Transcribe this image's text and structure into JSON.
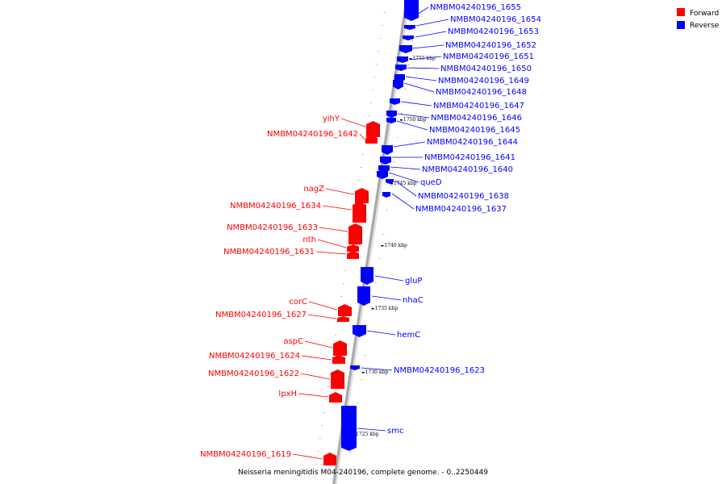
{
  "caption": "Neisseria meningitidis M04-240196, complete genome. - 0..2250449",
  "legend": {
    "forward": {
      "label": "Forward",
      "color": "#ff0000"
    },
    "reverse": {
      "label": "Reverse",
      "color": "#0000ff"
    }
  },
  "colors": {
    "forward": "#ff0000",
    "reverse": "#0000ff",
    "backbone": "#a8a8a8"
  },
  "ticks": [
    "1755 kbp",
    "1750 kbp",
    "1745 kbp",
    "1740 kbp",
    "1735 kbp",
    "1730 kbp",
    "1725 kbp"
  ],
  "genes": [
    {
      "name": "NMBM04240196_1655",
      "strand": "reverse"
    },
    {
      "name": "NMBM04240196_1654",
      "strand": "reverse"
    },
    {
      "name": "NMBM04240196_1653",
      "strand": "reverse"
    },
    {
      "name": "NMBM04240196_1652",
      "strand": "reverse"
    },
    {
      "name": "NMBM04240196_1651",
      "strand": "reverse"
    },
    {
      "name": "NMBM04240196_1650",
      "strand": "reverse"
    },
    {
      "name": "NMBM04240196_1649",
      "strand": "reverse"
    },
    {
      "name": "NMBM04240196_1648",
      "strand": "reverse"
    },
    {
      "name": "NMBM04240196_1647",
      "strand": "reverse"
    },
    {
      "name": "NMBM04240196_1646",
      "strand": "reverse"
    },
    {
      "name": "NMBM04240196_1645",
      "strand": "reverse"
    },
    {
      "name": "NMBM04240196_1644",
      "strand": "reverse"
    },
    {
      "name": "NMBM04240196_1641",
      "strand": "reverse"
    },
    {
      "name": "NMBM04240196_1640",
      "strand": "reverse"
    },
    {
      "name": "queD",
      "strand": "reverse"
    },
    {
      "name": "NMBM04240196_1638",
      "strand": "reverse"
    },
    {
      "name": "NMBM04240196_1637",
      "strand": "reverse"
    },
    {
      "name": "gluP",
      "strand": "reverse"
    },
    {
      "name": "nhaC",
      "strand": "reverse"
    },
    {
      "name": "hemC",
      "strand": "reverse"
    },
    {
      "name": "NMBM04240196_1623",
      "strand": "reverse"
    },
    {
      "name": "smc",
      "strand": "reverse"
    },
    {
      "name": "yihY",
      "strand": "forward"
    },
    {
      "name": "NMBM04240196_1642",
      "strand": "forward"
    },
    {
      "name": "nagZ",
      "strand": "forward"
    },
    {
      "name": "NMBM04240196_1634",
      "strand": "forward"
    },
    {
      "name": "NMBM04240196_1633",
      "strand": "forward"
    },
    {
      "name": "nth",
      "strand": "forward"
    },
    {
      "name": "NMBM04240196_1631",
      "strand": "forward"
    },
    {
      "name": "corC",
      "strand": "forward"
    },
    {
      "name": "NMBM04240196_1627",
      "strand": "forward"
    },
    {
      "name": "aspC",
      "strand": "forward"
    },
    {
      "name": "NMBM04240196_1624",
      "strand": "forward"
    },
    {
      "name": "NMBM04240196_1622",
      "strand": "forward"
    },
    {
      "name": "lpxH",
      "strand": "forward"
    },
    {
      "name": "NMBM04240196_1619",
      "strand": "forward"
    }
  ]
}
